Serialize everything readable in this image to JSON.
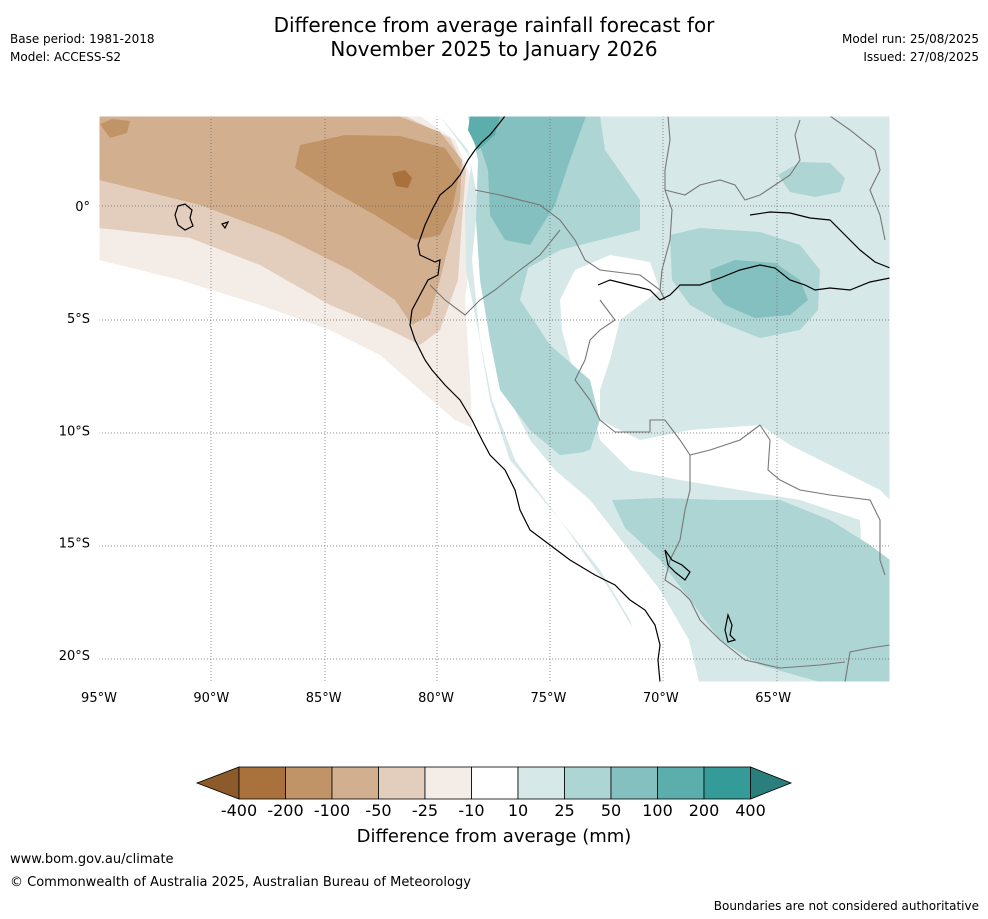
{
  "header": {
    "base_period": "Base period: 1981-2018",
    "model": "Model: ACCESS-S2",
    "title_line1": "Difference from average rainfall forecast for",
    "title_line2": "November 2025 to January 2026",
    "model_run": "Model run: 25/08/2025",
    "issued": "Issued: 27/08/2025"
  },
  "map": {
    "lon_labels": [
      "95°W",
      "90°W",
      "85°W",
      "80°W",
      "75°W",
      "70°W",
      "65°W"
    ],
    "lat_labels": [
      "0°",
      "5°S",
      "10°S",
      "15°S",
      "20°S"
    ],
    "lon_values": [
      -95,
      -90,
      -85,
      -80,
      -75,
      -70,
      -65
    ],
    "lat_values": [
      0,
      -5,
      -10,
      -15,
      -20
    ]
  },
  "colorbar": {
    "title": "Difference from average (mm)",
    "tick_labels": [
      "-400",
      "-200",
      "-100",
      "-50",
      "-25",
      "-10",
      "10",
      "25",
      "50",
      "100",
      "200",
      "400"
    ],
    "colors": [
      "#a9713c",
      "#c19468",
      "#d2af8f",
      "#e3cebd",
      "#f4ece7",
      "#ffffff",
      "#d6e8e8",
      "#acd5d4",
      "#84c0bf",
      "#5caeac",
      "#349b98"
    ],
    "low_extend_color": "#8c5a2b",
    "high_extend_color": "#2a7f7c"
  },
  "footer": {
    "website": "www.bom.gov.au/climate",
    "copyright": "© Commonwealth of Australia 2025, Australian Bureau of Meteorology",
    "disclaimer": "Boundaries are not considered authoritative"
  }
}
